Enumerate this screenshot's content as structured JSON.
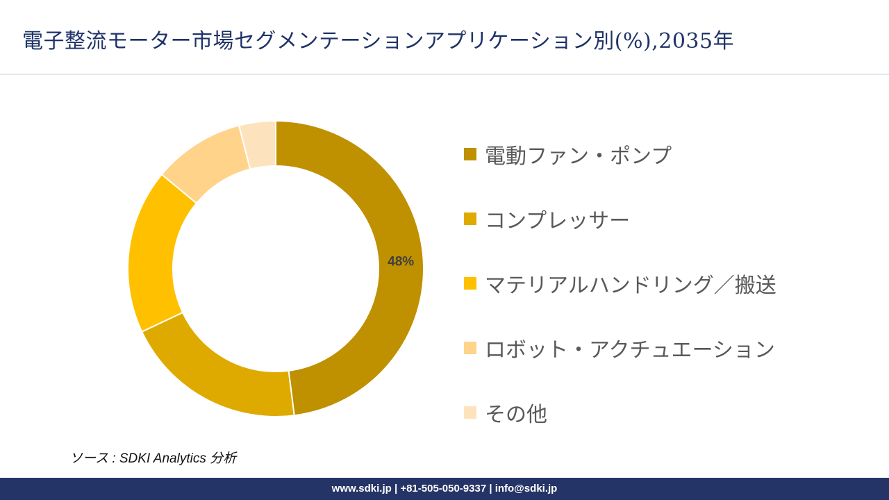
{
  "title": "電子整流モーター市場セグメンテーションアプリケーション別(%),2035年",
  "source": "ソース : SDKI Analytics 分析",
  "footer": "www.sdki.jp | +81-505-050-9337 | info@sdki.jp",
  "chart_data": {
    "type": "pie",
    "style": "donut",
    "title": "電子整流モーター市場セグメンテーションアプリケーション別(%),2035年",
    "categories": [
      "電動ファン・ポンプ",
      "コンプレッサー",
      "マテリアルハンドリング／搬送",
      "ロボット・アクチュエーション",
      "その他"
    ],
    "values": [
      48,
      20,
      18,
      10,
      4
    ],
    "colors": [
      "#bf9000",
      "#dfaa00",
      "#ffc000",
      "#ffd38a",
      "#fde3bd"
    ],
    "data_labels": [
      {
        "index": 0,
        "text": "48%"
      }
    ],
    "legend_position": "right",
    "unit": "%"
  }
}
